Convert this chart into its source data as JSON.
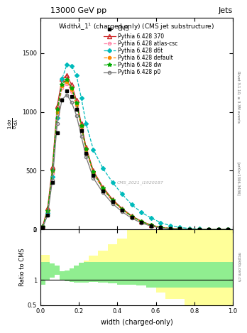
{
  "title_top": "13000 GeV pp",
  "title_right": "Jets",
  "plot_title": "Width$\\lambda$_1$^1$ (charged only) (CMS jet substructure)",
  "xlabel": "width (charged-only)",
  "ylabel_ratio": "Ratio to CMS",
  "watermark": "CMS_2021_I1920187",
  "rivet_text": "Rivet 3.1.10, ≥ 3.3M events",
  "arxiv_text": "[arXiv:1306.3436]",
  "mcplots_text": "mcplots.cern.ch",
  "x_bins": [
    0.0,
    0.025,
    0.05,
    0.075,
    0.1,
    0.125,
    0.15,
    0.175,
    0.2,
    0.225,
    0.25,
    0.3,
    0.35,
    0.4,
    0.45,
    0.5,
    0.55,
    0.6,
    0.65,
    0.7,
    0.75,
    0.8,
    0.85,
    0.9,
    0.95,
    1.0
  ],
  "ylim_main": [
    0,
    1800
  ],
  "ylim_ratio": [
    0.5,
    2.0
  ],
  "cms_data_x": [
    0.0125,
    0.0375,
    0.0625,
    0.0875,
    0.1125,
    0.1375,
    0.1625,
    0.1875,
    0.2125,
    0.2375,
    0.275,
    0.325,
    0.375,
    0.425,
    0.475,
    0.525,
    0.575,
    0.625,
    0.675,
    0.725,
    0.775,
    0.825,
    0.875,
    0.925,
    0.975
  ],
  "cms_data_y": [
    20,
    120,
    400,
    820,
    1100,
    1180,
    1130,
    1020,
    840,
    650,
    460,
    330,
    235,
    165,
    105,
    62,
    33,
    16,
    8,
    4,
    2,
    1,
    0.5,
    0.2,
    0.1
  ],
  "py370_x": [
    0.0125,
    0.0375,
    0.0625,
    0.0875,
    0.1125,
    0.1375,
    0.1625,
    0.1875,
    0.2125,
    0.2375,
    0.275,
    0.325,
    0.375,
    0.425,
    0.475,
    0.525,
    0.575,
    0.625,
    0.675,
    0.725,
    0.775,
    0.825,
    0.875,
    0.925,
    0.975
  ],
  "py370_y": [
    30,
    180,
    530,
    1050,
    1280,
    1310,
    1230,
    1100,
    900,
    700,
    500,
    360,
    255,
    178,
    115,
    70,
    38,
    18,
    9,
    4,
    2,
    1,
    0.5,
    0.2,
    0.1
  ],
  "pyatlas_x": [
    0.0125,
    0.0375,
    0.0625,
    0.0875,
    0.1125,
    0.1375,
    0.1625,
    0.1875,
    0.2125,
    0.2375,
    0.275,
    0.325,
    0.375,
    0.425,
    0.475,
    0.525,
    0.575,
    0.625,
    0.675,
    0.725,
    0.775,
    0.825,
    0.875,
    0.925,
    0.975
  ],
  "pyatlas_y": [
    25,
    150,
    480,
    980,
    1200,
    1240,
    1170,
    1050,
    860,
    665,
    475,
    340,
    240,
    168,
    108,
    65,
    35,
    17,
    8,
    4,
    2,
    1,
    0.5,
    0.2,
    0.1
  ],
  "pyd6t_x": [
    0.0125,
    0.0375,
    0.0625,
    0.0875,
    0.1125,
    0.1375,
    0.1625,
    0.1875,
    0.2125,
    0.2375,
    0.275,
    0.325,
    0.375,
    0.425,
    0.475,
    0.525,
    0.575,
    0.625,
    0.675,
    0.725,
    0.775,
    0.825,
    0.875,
    0.925,
    0.975
  ],
  "pyd6t_y": [
    22,
    140,
    450,
    950,
    1280,
    1400,
    1390,
    1310,
    1120,
    900,
    680,
    520,
    400,
    300,
    210,
    145,
    98,
    58,
    33,
    17,
    8,
    4,
    2,
    0.8,
    0.3
  ],
  "pydefault_x": [
    0.0125,
    0.0375,
    0.0625,
    0.0875,
    0.1125,
    0.1375,
    0.1625,
    0.1875,
    0.2125,
    0.2375,
    0.275,
    0.325,
    0.375,
    0.425,
    0.475,
    0.525,
    0.575,
    0.625,
    0.675,
    0.725,
    0.775,
    0.825,
    0.875,
    0.925,
    0.975
  ],
  "pydefault_y": [
    25,
    155,
    495,
    1000,
    1220,
    1260,
    1190,
    1065,
    875,
    678,
    483,
    346,
    244,
    170,
    110,
    66,
    35,
    17,
    8,
    4,
    2,
    1,
    0.5,
    0.2,
    0.1
  ],
  "pydw_x": [
    0.0125,
    0.0375,
    0.0625,
    0.0875,
    0.1125,
    0.1375,
    0.1625,
    0.1875,
    0.2125,
    0.2375,
    0.275,
    0.325,
    0.375,
    0.425,
    0.475,
    0.525,
    0.575,
    0.625,
    0.675,
    0.725,
    0.775,
    0.825,
    0.875,
    0.925,
    0.975
  ],
  "pydw_y": [
    25,
    160,
    505,
    1020,
    1235,
    1275,
    1205,
    1075,
    883,
    685,
    488,
    350,
    247,
    172,
    111,
    67,
    36,
    17,
    8,
    4,
    2,
    1,
    0.5,
    0.2,
    0.1
  ],
  "pyp0_x": [
    0.0125,
    0.0375,
    0.0625,
    0.0875,
    0.1125,
    0.1375,
    0.1625,
    0.1875,
    0.2125,
    0.2375,
    0.275,
    0.325,
    0.375,
    0.425,
    0.475,
    0.525,
    0.575,
    0.625,
    0.675,
    0.725,
    0.775,
    0.825,
    0.875,
    0.925,
    0.975
  ],
  "pyp0_y": [
    18,
    120,
    420,
    900,
    1105,
    1145,
    1080,
    970,
    795,
    616,
    438,
    313,
    219,
    150,
    95,
    55,
    28,
    12,
    5,
    2.5,
    1,
    0.5,
    0.2,
    0.1,
    0.05
  ],
  "color_370": "#cc2222",
  "color_atlas": "#ff88aa",
  "color_d6t": "#00bbbb",
  "color_default": "#ff8800",
  "color_dw": "#00aa00",
  "color_p0": "#777777",
  "color_cms": "#000000",
  "bg_green": "#90EE90",
  "bg_yellow": "#FFFF99",
  "bg_white": "#ffffff"
}
